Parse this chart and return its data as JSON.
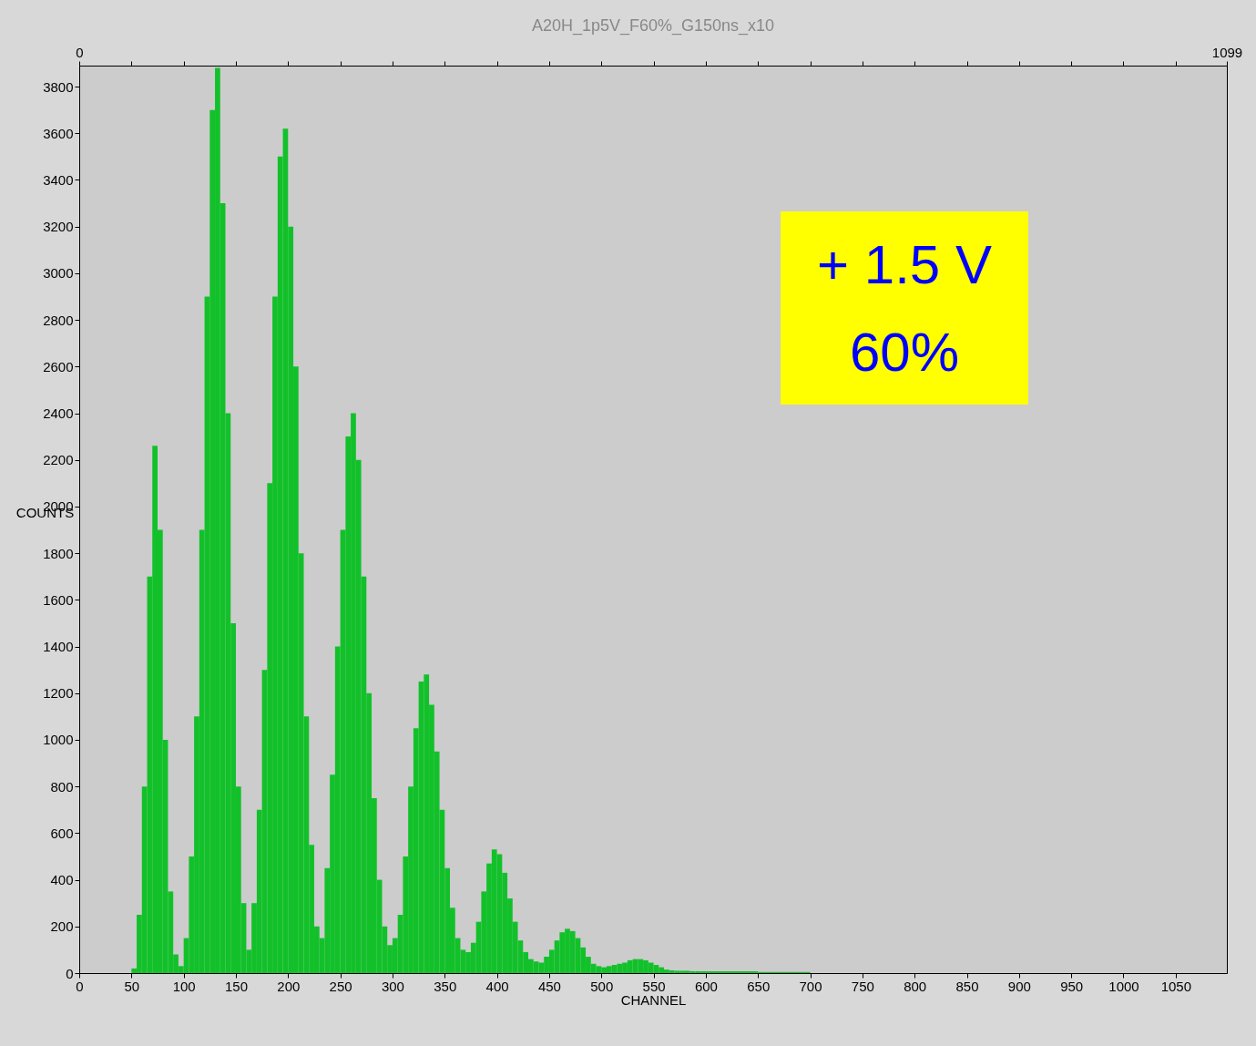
{
  "chart_data": {
    "type": "histogram",
    "title": "A20H_1p5V_F60%_G150ns_x10",
    "xlabel": "CHANNEL",
    "ylabel": "COUNTS",
    "bins": [
      50,
      55,
      60,
      65,
      70,
      75,
      80,
      85,
      90,
      95,
      100,
      105,
      110,
      115,
      120,
      125,
      130,
      135,
      140,
      145,
      150,
      155,
      160,
      165,
      170,
      175,
      180,
      185,
      190,
      195,
      200,
      205,
      210,
      215,
      220,
      225,
      230,
      235,
      240,
      245,
      250,
      255,
      260,
      265,
      270,
      275,
      280,
      285,
      290,
      295,
      300,
      305,
      310,
      315,
      320,
      325,
      330,
      335,
      340,
      345,
      350,
      355,
      360,
      365,
      370,
      375,
      380,
      385,
      390,
      395,
      400,
      405,
      410,
      415,
      420,
      425,
      430,
      435,
      440,
      445,
      450,
      455,
      460,
      465,
      470,
      475,
      480,
      485,
      490,
      495,
      500,
      505,
      510,
      515,
      520,
      525,
      530,
      535,
      540,
      545,
      550,
      555,
      560,
      565,
      570,
      575,
      580,
      585,
      590,
      595,
      600,
      650,
      700
    ],
    "values": [
      20,
      250,
      800,
      1700,
      2260,
      1900,
      1000,
      350,
      80,
      30,
      150,
      500,
      1100,
      1900,
      2900,
      3700,
      3880,
      3300,
      2400,
      1500,
      800,
      300,
      100,
      300,
      700,
      1300,
      2100,
      2900,
      3500,
      3620,
      3200,
      2600,
      1800,
      1100,
      550,
      200,
      150,
      450,
      850,
      1400,
      1900,
      2300,
      2400,
      2200,
      1700,
      1200,
      750,
      400,
      200,
      120,
      150,
      250,
      500,
      800,
      1050,
      1250,
      1280,
      1150,
      950,
      700,
      450,
      280,
      150,
      100,
      90,
      130,
      220,
      350,
      470,
      530,
      510,
      430,
      320,
      220,
      140,
      90,
      60,
      50,
      45,
      70,
      100,
      140,
      175,
      190,
      180,
      150,
      110,
      70,
      40,
      30,
      25,
      30,
      35,
      40,
      45,
      55,
      60,
      60,
      55,
      45,
      35,
      25,
      15,
      12,
      10,
      10,
      10,
      8,
      8,
      8,
      8,
      5
    ],
    "color": "#12c12a",
    "xlim": [
      0,
      1099
    ],
    "xticks": [
      0,
      50,
      100,
      150,
      200,
      250,
      300,
      350,
      400,
      450,
      500,
      550,
      600,
      650,
      700,
      750,
      800,
      850,
      900,
      950,
      1000,
      1050
    ],
    "x2lim": [
      0,
      1099
    ],
    "x2ticks": [
      0,
      {
        "value": 50,
        "label": null
      },
      {
        "value": 100,
        "label": null
      },
      {
        "value": 150,
        "label": null
      },
      {
        "value": 200,
        "label": null
      },
      {
        "value": 250,
        "label": null
      },
      {
        "value": 300,
        "label": null
      },
      {
        "value": 350,
        "label": null
      },
      {
        "value": 400,
        "label": null
      },
      {
        "value": 450,
        "label": null
      },
      {
        "value": 500,
        "label": null
      },
      {
        "value": 550,
        "label": null
      },
      {
        "value": 600,
        "label": null
      },
      {
        "value": 650,
        "label": null
      },
      {
        "value": 700,
        "label": null
      },
      {
        "value": 750,
        "label": null
      },
      {
        "value": 800,
        "label": null
      },
      {
        "value": 850,
        "label": null
      },
      {
        "value": 900,
        "label": null
      },
      {
        "value": 950,
        "label": null
      },
      {
        "value": 1000,
        "label": null
      },
      {
        "value": 1050,
        "label": null
      },
      1099
    ],
    "ylim": [
      0,
      3890
    ],
    "yticks": [
      0,
      200,
      400,
      600,
      800,
      1000,
      1200,
      1400,
      1600,
      1800,
      2000,
      2200,
      2400,
      2600,
      2800,
      3000,
      3200,
      3400,
      3600,
      3800
    ],
    "grid": false,
    "annotations": [
      "+ 1.5 V",
      "60%"
    ]
  }
}
